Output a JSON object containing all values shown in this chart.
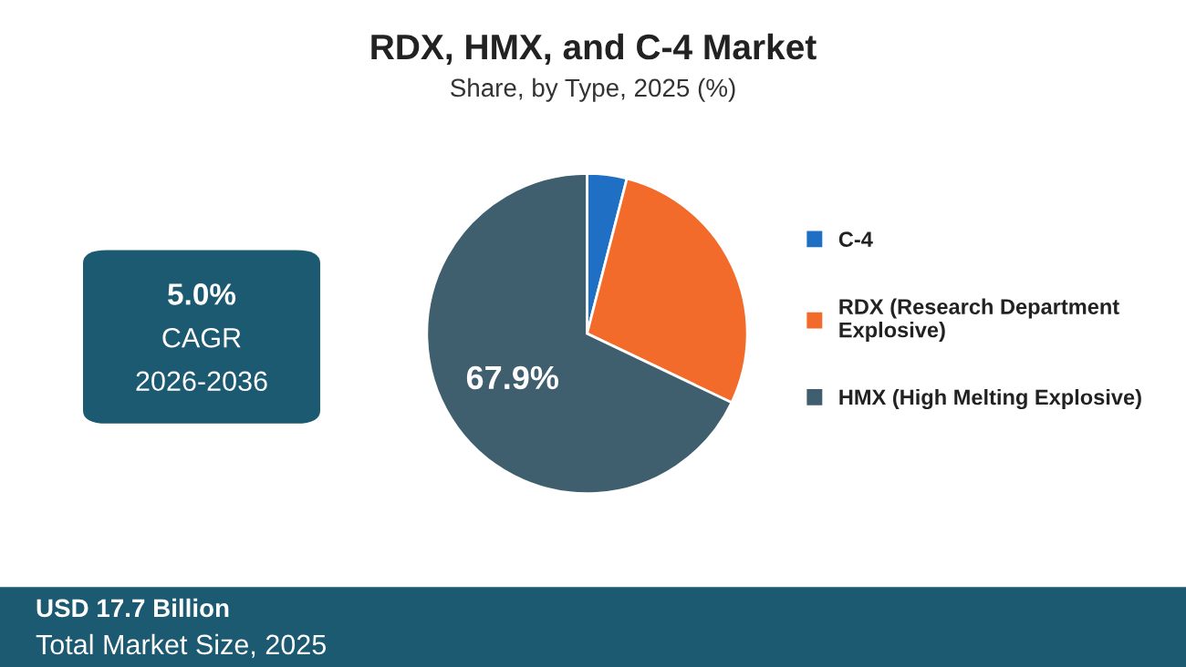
{
  "chart_data": {
    "type": "pie",
    "title": "RDX, HMX, and C-4 Market",
    "subtitle": "Share, by Type, 2025 (%)",
    "categories": [
      "C-4",
      "RDX (Research Department\nExplosive)",
      "HMX (High Melting Explosive)"
    ],
    "values": [
      4.0,
      28.1,
      67.9
    ],
    "colors": [
      "#1f6fc5",
      "#f26b2a",
      "#3f5f6e"
    ],
    "value_labels": [
      null,
      null,
      "67.9%"
    ],
    "legend": "right",
    "annotations": [
      "5.0%",
      "CAGR",
      "2026-2036",
      "USD 17.7 Billion",
      "Total Market Size, 2025"
    ]
  }
}
